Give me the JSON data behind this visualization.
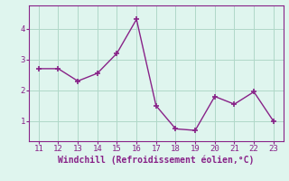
{
  "x": [
    11,
    12,
    13,
    14,
    15,
    16,
    17,
    18,
    19,
    20,
    21,
    22,
    23
  ],
  "y": [
    2.7,
    2.7,
    2.3,
    2.55,
    3.2,
    4.3,
    1.5,
    0.75,
    0.7,
    1.8,
    1.55,
    1.95,
    1.0
  ],
  "line_color": "#882288",
  "marker": "+",
  "marker_size": 4,
  "linewidth": 1.0,
  "background_color": "#dff5ee",
  "grid_color": "#b0d8c8",
  "xlabel": "Windchill (Refroidissement éolien,°C)",
  "xlabel_fontsize": 7,
  "ylabel_ticks": [
    1,
    2,
    3,
    4
  ],
  "xlim": [
    10.5,
    23.5
  ],
  "ylim": [
    0.35,
    4.75
  ],
  "xticks": [
    11,
    12,
    13,
    14,
    15,
    16,
    17,
    18,
    19,
    20,
    21,
    22,
    23
  ],
  "tick_fontsize": 6.5,
  "tick_color": "#882288",
  "axis_color": "#882288",
  "spine_color": "#882288"
}
